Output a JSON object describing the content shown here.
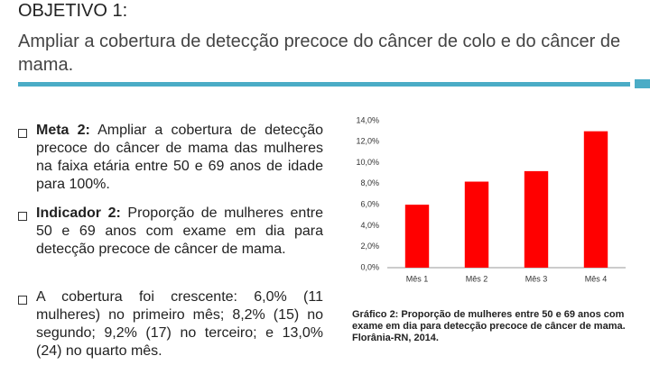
{
  "header": {
    "title": "OBJETIVO 1:",
    "subtitle": "Ampliar a cobertura de detecção precoce do câncer de colo e do câncer de mama."
  },
  "bullets": [
    {
      "lead": "Meta 2:",
      "text": "Ampliar a cobertura de detecção precoce do câncer de mama das mulheres na faixa etária entre 50 e 69 anos de idade para 100%."
    },
    {
      "lead": "Indicador 2:",
      "text": "Proporção de mulheres entre 50 e 69 anos com exame em dia para detecção precoce de câncer de mama."
    },
    {
      "lead": "",
      "text": "A cobertura foi crescente: 6,0% (11 mulheres) no primeiro mês; 8,2% (15) no segundo; 9,2% (17) no terceiro; e 13,0% (24) no quarto mês."
    }
  ],
  "chart_data": {
    "type": "bar",
    "categories": [
      "Mês 1",
      "Mês 2",
      "Mês 3",
      "Mês 4"
    ],
    "values": [
      6.0,
      8.2,
      9.2,
      13.0
    ],
    "color": "#ff0000",
    "ylim": [
      0,
      14
    ],
    "yticks": [
      {
        "value": 0,
        "label": "0,0%"
      },
      {
        "value": 2,
        "label": "2,0%"
      },
      {
        "value": 4,
        "label": "4,0%"
      },
      {
        "value": 6,
        "label": "6,0%"
      },
      {
        "value": 8,
        "label": "8,0%"
      },
      {
        "value": 10,
        "label": "10,0%"
      },
      {
        "value": 12,
        "label": "12,0%"
      },
      {
        "value": 14,
        "label": "14,0%"
      }
    ],
    "grid": false,
    "caption": "Gráfico 2: Proporção de mulheres entre 50 e 69 anos com exame em dia para detecção precoce de câncer de mama. Florânia-RN, 2014."
  }
}
